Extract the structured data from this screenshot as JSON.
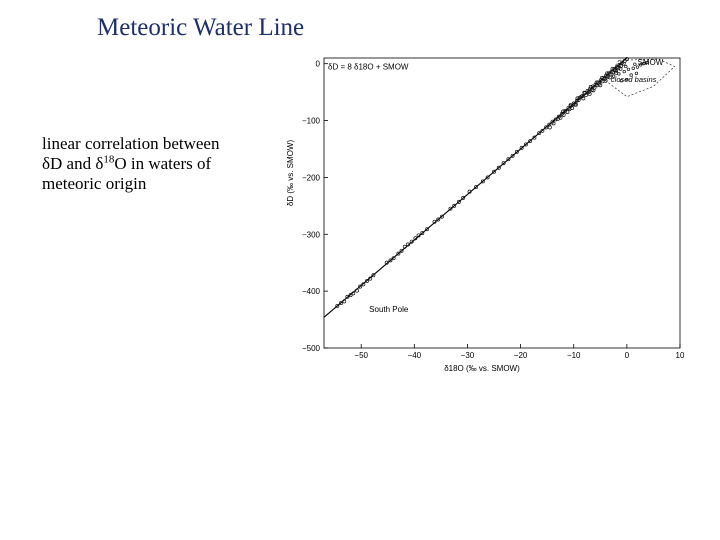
{
  "slide": {
    "title": "Meteoric Water Line",
    "bullet": {
      "line1": "linear correlation between",
      "d": "δ",
      "D_and": "D and ",
      "d18": "δ",
      "sup": "18",
      "O_in": "O in waters of",
      "line3": "meteoric origin"
    }
  },
  "chart_data": {
    "type": "scatter",
    "title": "",
    "xlabel": "δ18O (‰ vs. SMOW)",
    "ylabel": "δD (‰ vs. SMOW)",
    "xlim": [
      -57,
      10
    ],
    "ylim": [
      -500,
      10
    ],
    "x_ticks": [
      -50,
      -40,
      -30,
      -20,
      -10,
      0,
      10
    ],
    "y_ticks": [
      0,
      -100,
      -200,
      -300,
      -400,
      -500
    ],
    "x_tick_labels": [
      "−50",
      "−40",
      "−30",
      "−20",
      "−10",
      "0",
      "10"
    ],
    "y_tick_labels": [
      "0",
      "−100",
      "−200",
      "−300",
      "−400",
      "−500"
    ],
    "grid": false,
    "fit_line": {
      "equation": "δD = 8 δ18O + SMOW",
      "slope": 8,
      "intercept": 10,
      "x_range": [
        -57,
        0
      ]
    },
    "annotations": [
      "δD = 8 δ18O + SMOW",
      "SMOW",
      "closed basins",
      "South Pole"
    ],
    "series": [
      {
        "points": [
          [
            -54.5,
            -426
          ],
          [
            -53.8,
            -421
          ],
          [
            -53.2,
            -418
          ],
          [
            -52.6,
            -410
          ],
          [
            -52.0,
            -407
          ],
          [
            -51.5,
            -404
          ],
          [
            -50.8,
            -399
          ],
          [
            -50.2,
            -392
          ],
          [
            -49.6,
            -388
          ],
          [
            -48.9,
            -382
          ],
          [
            -48.3,
            -378
          ],
          [
            -47.7,
            -372
          ],
          [
            -45.2,
            -350
          ],
          [
            -44.5,
            -346
          ],
          [
            -43.9,
            -342
          ],
          [
            -43.0,
            -334
          ],
          [
            -42.4,
            -329
          ],
          [
            -41.8,
            -322
          ],
          [
            -41.2,
            -318
          ],
          [
            -40.5,
            -313
          ],
          [
            -39.8,
            -307
          ],
          [
            -39.2,
            -302
          ],
          [
            -38.5,
            -298
          ],
          [
            -37.6,
            -291
          ],
          [
            -36.2,
            -278
          ],
          [
            -35.5,
            -274
          ],
          [
            -34.8,
            -269
          ],
          [
            -33.2,
            -255
          ],
          [
            -32.5,
            -250
          ],
          [
            -31.6,
            -243
          ],
          [
            -30.8,
            -236
          ],
          [
            -29.6,
            -225
          ],
          [
            -28.4,
            -217
          ],
          [
            -27.1,
            -207
          ],
          [
            -26.2,
            -200
          ],
          [
            -25.0,
            -190
          ],
          [
            -24.1,
            -183
          ],
          [
            -23.2,
            -175
          ],
          [
            -22.3,
            -168
          ],
          [
            -21.5,
            -162
          ],
          [
            -20.7,
            -155
          ],
          [
            -19.8,
            -148
          ],
          [
            -19.0,
            -142
          ],
          [
            -18.2,
            -136
          ],
          [
            -17.4,
            -130
          ],
          [
            -16.5,
            -122
          ],
          [
            -15.9,
            -118
          ],
          [
            -15.2,
            -112
          ],
          [
            -14.6,
            -107
          ],
          [
            -14.0,
            -102
          ],
          [
            -13.4,
            -98
          ],
          [
            -12.8,
            -93
          ],
          [
            -12.2,
            -88
          ],
          [
            -11.6,
            -83
          ],
          [
            -11.0,
            -78
          ],
          [
            -10.5,
            -74
          ],
          [
            -10.0,
            -70
          ],
          [
            -9.4,
            -65
          ],
          [
            -8.9,
            -60
          ],
          [
            -8.4,
            -57
          ],
          [
            -7.9,
            -52
          ],
          [
            -7.4,
            -48
          ],
          [
            -6.9,
            -44
          ],
          [
            -6.4,
            -40
          ],
          [
            -5.9,
            -37
          ],
          [
            -5.4,
            -33
          ],
          [
            -4.9,
            -29
          ],
          [
            -4.4,
            -25
          ],
          [
            -3.9,
            -21
          ],
          [
            -3.4,
            -17
          ],
          [
            -2.9,
            -14
          ],
          [
            -2.4,
            -10
          ],
          [
            -1.9,
            -6
          ],
          [
            -1.4,
            -2
          ],
          [
            -0.9,
            2
          ],
          [
            -0.4,
            5
          ],
          [
            0.0,
            8
          ],
          [
            -12.5,
            -95
          ],
          [
            -11.2,
            -85
          ],
          [
            -9.8,
            -72
          ],
          [
            -8.6,
            -58
          ],
          [
            -7.2,
            -50
          ],
          [
            -6.1,
            -42
          ],
          [
            -5.2,
            -35
          ],
          [
            -4.2,
            -27
          ],
          [
            -3.1,
            -19
          ],
          [
            -2.2,
            -12
          ],
          [
            -1.1,
            -4
          ],
          [
            -13.8,
            -105
          ],
          [
            -10.8,
            -80
          ],
          [
            -9.1,
            -64
          ],
          [
            -7.7,
            -55
          ],
          [
            -6.6,
            -46
          ],
          [
            -5.6,
            -38
          ],
          [
            -4.6,
            -31
          ],
          [
            -3.6,
            -23
          ],
          [
            -2.6,
            -15
          ],
          [
            -1.6,
            -8
          ],
          [
            -0.6,
            0
          ],
          [
            -14.5,
            -112
          ],
          [
            -13.0,
            -97
          ],
          [
            -11.9,
            -90
          ],
          [
            -10.3,
            -78
          ],
          [
            -9.6,
            -72
          ],
          [
            -8.2,
            -61
          ],
          [
            -7.0,
            -53
          ],
          [
            -6.3,
            -47
          ],
          [
            -5.0,
            -38
          ],
          [
            -4.0,
            -30
          ],
          [
            -3.2,
            -24
          ],
          [
            -2.0,
            -16
          ],
          [
            -1.2,
            -9
          ],
          [
            -12.0,
            -84
          ],
          [
            -10.6,
            -73
          ],
          [
            -9.3,
            -61
          ],
          [
            -8.0,
            -51
          ],
          [
            -6.8,
            -41
          ],
          [
            -5.7,
            -33
          ],
          [
            -4.7,
            -25
          ],
          [
            -3.7,
            -17
          ],
          [
            -2.7,
            -9
          ]
        ]
      },
      {
        "name": "closed basins",
        "points": [
          [
            -0.5,
            -14
          ],
          [
            0.3,
            -10
          ],
          [
            1.2,
            -8
          ],
          [
            2.0,
            -6
          ],
          [
            -1.5,
            -18
          ],
          [
            0.8,
            -20
          ],
          [
            1.8,
            -17
          ],
          [
            -2.5,
            -22
          ],
          [
            2.6,
            -2
          ],
          [
            3.2,
            0
          ],
          [
            3.8,
            2
          ],
          [
            -0.2,
            -5
          ],
          [
            1.5,
            -1
          ],
          [
            -2.0,
            -13
          ],
          [
            0.0,
            -28
          ],
          [
            -1.0,
            -30
          ]
        ]
      }
    ]
  }
}
